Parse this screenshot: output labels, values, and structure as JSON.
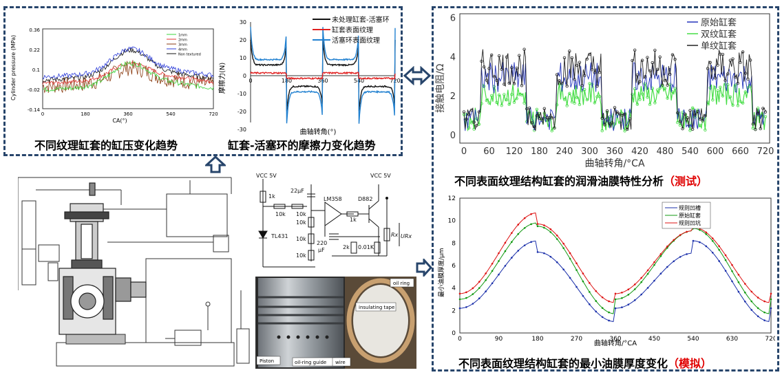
{
  "captions": {
    "cyl_pressure": "不同纹理缸套的缸压变化趋势",
    "friction": "缸套-活塞环的摩擦力变化趋势",
    "resistance": "不同表面纹理结构缸套的润滑油膜特性分析",
    "resistance_tag": "（测试）",
    "film": "不同表面纹理结构缸套的最小油膜厚度变化",
    "film_tag": "（模拟）"
  },
  "chart1": {
    "ylabel": "Cylinder pressure (MPa)",
    "xlabel": "CA(°)",
    "yticks": [
      "0.36",
      "0.22",
      "0.1",
      "-0.02",
      "-0.14"
    ],
    "xticks": [
      "0",
      "180",
      "360",
      "540",
      "720"
    ],
    "legend": [
      "1mm",
      "2mm",
      "3mm",
      "4mm",
      "Non textured"
    ],
    "colors": [
      "#39d439",
      "#e03030",
      "#8a3a10",
      "#2b3bd8",
      "#111111"
    ]
  },
  "chart2": {
    "ylabel": "摩擦力(N)",
    "xlabel": "曲轴转角(°)",
    "yticks": [
      "30",
      "20",
      "10",
      "0",
      "-10",
      "-20",
      "-30"
    ],
    "xticks": [
      "0",
      "180",
      "360",
      "540",
      "720"
    ],
    "legend": [
      "未处理缸套-活塞环",
      "缸套表面纹理",
      "活塞环表面纹理"
    ],
    "colors": [
      "#111111",
      "#e02020",
      "#2080d0"
    ]
  },
  "chart3": {
    "ylabel": "接触电阻/Ω",
    "xlabel": "曲轴转角/°CA",
    "yticks": [
      "6",
      "4",
      "2",
      "0"
    ],
    "xticks": [
      "0",
      "60",
      "120",
      "180",
      "240",
      "300",
      "360",
      "420",
      "480",
      "540",
      "600",
      "660",
      "720"
    ],
    "legend": [
      "原始缸套",
      "双纹缸套",
      "单纹缸套"
    ],
    "colors": [
      "#2233bb",
      "#44dd44",
      "#222222"
    ]
  },
  "chart4": {
    "ylabel": "最小油膜厚度/μm",
    "xlabel": "曲轴转角/°CA",
    "yticks": [
      "12",
      "10",
      "8",
      "6",
      "4",
      "2",
      "0"
    ],
    "xticks": [
      "0",
      "90",
      "180",
      "270",
      "360",
      "450",
      "540",
      "630",
      "720"
    ],
    "legend": [
      "规则凹槽",
      "原始缸套",
      "规则凹坑"
    ],
    "colors": [
      "#1a2faa",
      "#119911",
      "#dd1111"
    ]
  },
  "circuit": {
    "vcc1": "VCC 5V",
    "vcc2": "VCC 5V",
    "r1": "1k",
    "cap": "22μF",
    "opamp": "LM358",
    "transistor": "D882",
    "r2": "10k",
    "r3": "10k",
    "r4": "1k",
    "r5": "10k",
    "r6": "10k",
    "r7": "10k",
    "cap2": "220",
    "cap2u": "μF",
    "r8": "2k",
    "r9": "0.01K",
    "rx": "Rx",
    "ux": "URx",
    "zener": "TL431"
  },
  "photo": {
    "labels": [
      "oil ring",
      "insulating tape",
      "Piston",
      "oil-ring guide",
      "wire"
    ]
  }
}
